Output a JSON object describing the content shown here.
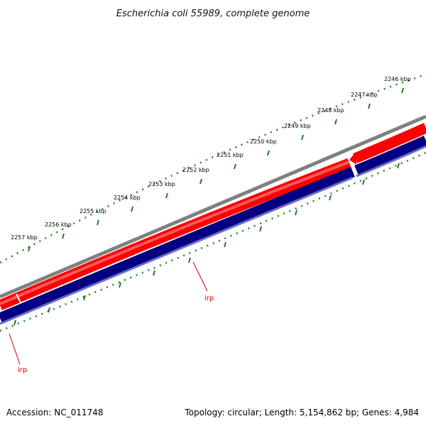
{
  "title": "Escherichia coli 55989, complete genome",
  "footer": {
    "accession": "Accession: NC_011748",
    "topology": "Topology: circular; Length: 5,154,862 bp; Genes: 4,984"
  },
  "scale_labels": [
    "2246 kbp",
    "2247 kbp",
    "2248 kbp",
    "2249 kbp",
    "2250 kbp",
    "2251 kbp",
    "2252 kbp",
    "2253 kbp",
    "2254 kbp",
    "2255 kbp",
    "2256 kbp",
    "2257 kbp"
  ],
  "genes": [
    {
      "name": "irp",
      "strand": "reverse"
    },
    {
      "name": "irp",
      "strand": "reverse"
    }
  ],
  "colors": {
    "backbone": "#808080",
    "cds_forward_track": "#ff0000",
    "gene_reverse_track": "#000080",
    "tick": "#1e7d1e",
    "gene_label": "#cc0000"
  }
}
